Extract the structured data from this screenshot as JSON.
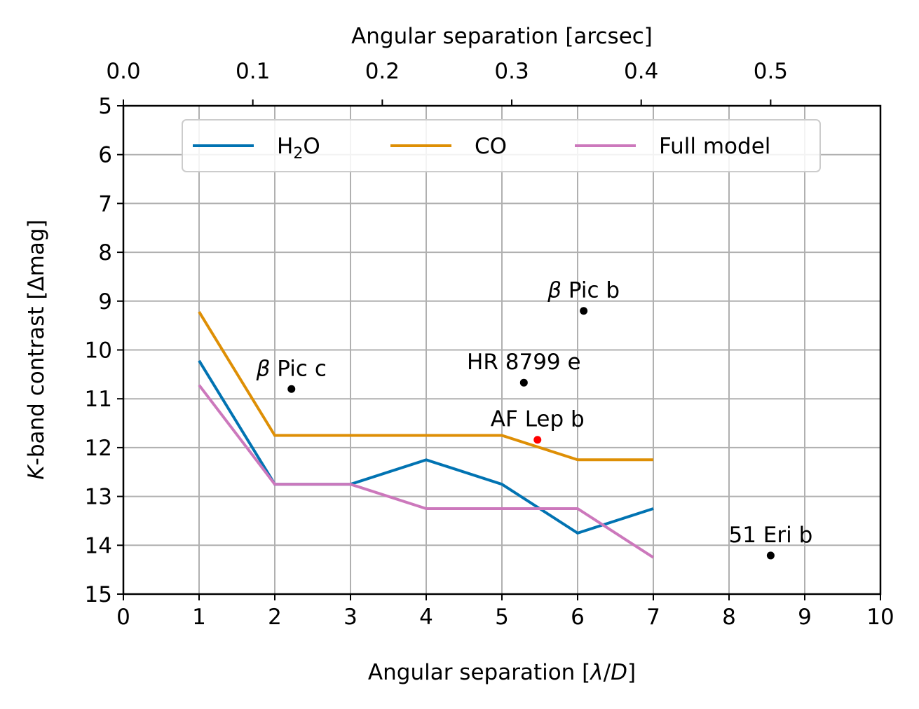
{
  "chart_data": {
    "type": "line",
    "xlabel": "Angular separation [λ/D]",
    "ylabel": "K-band contrast [Δmag]",
    "top_xlabel": "Angular separation [arcsec]",
    "xlim": [
      0,
      10
    ],
    "ylim": [
      15,
      5
    ],
    "top_xlim": [
      0.0,
      0.5848
    ],
    "x_ticks": [
      "0",
      "1",
      "2",
      "3",
      "4",
      "5",
      "6",
      "7",
      "8",
      "9",
      "10"
    ],
    "y_ticks": [
      "5",
      "6",
      "7",
      "8",
      "9",
      "10",
      "11",
      "12",
      "13",
      "14",
      "15"
    ],
    "top_ticks": [
      "0.0",
      "0.1",
      "0.2",
      "0.3",
      "0.4",
      "0.5"
    ],
    "grid": true,
    "legend_position": "top-center",
    "series": [
      {
        "name": "H₂O",
        "color": "#0173b2",
        "x": [
          1,
          2,
          3,
          4,
          5,
          6,
          7
        ],
        "y": [
          10.22,
          12.75,
          12.75,
          12.25,
          12.75,
          13.75,
          13.25
        ]
      },
      {
        "name": "CO",
        "color": "#de8f05",
        "x": [
          1,
          2,
          3,
          4,
          5,
          6,
          7
        ],
        "y": [
          9.22,
          11.75,
          11.75,
          11.75,
          11.75,
          12.25,
          12.25
        ]
      },
      {
        "name": "Full model",
        "color": "#cc78bc",
        "x": [
          1,
          2,
          3,
          4,
          5,
          6,
          7
        ],
        "y": [
          10.72,
          12.75,
          12.75,
          13.25,
          13.25,
          13.25,
          14.25
        ]
      }
    ],
    "points": [
      {
        "label": "β Pic b",
        "x": 6.08,
        "y": 9.2,
        "color": "#000000"
      },
      {
        "label": "β Pic c",
        "x": 2.22,
        "y": 10.8,
        "color": "#000000"
      },
      {
        "label": "HR 8799 e",
        "x": 5.29,
        "y": 10.67,
        "color": "#000000"
      },
      {
        "label": "AF Lep b",
        "x": 5.47,
        "y": 11.84,
        "color": "#ff0000"
      },
      {
        "label": "51 Eri b",
        "x": 8.55,
        "y": 14.21,
        "color": "#000000"
      }
    ]
  }
}
